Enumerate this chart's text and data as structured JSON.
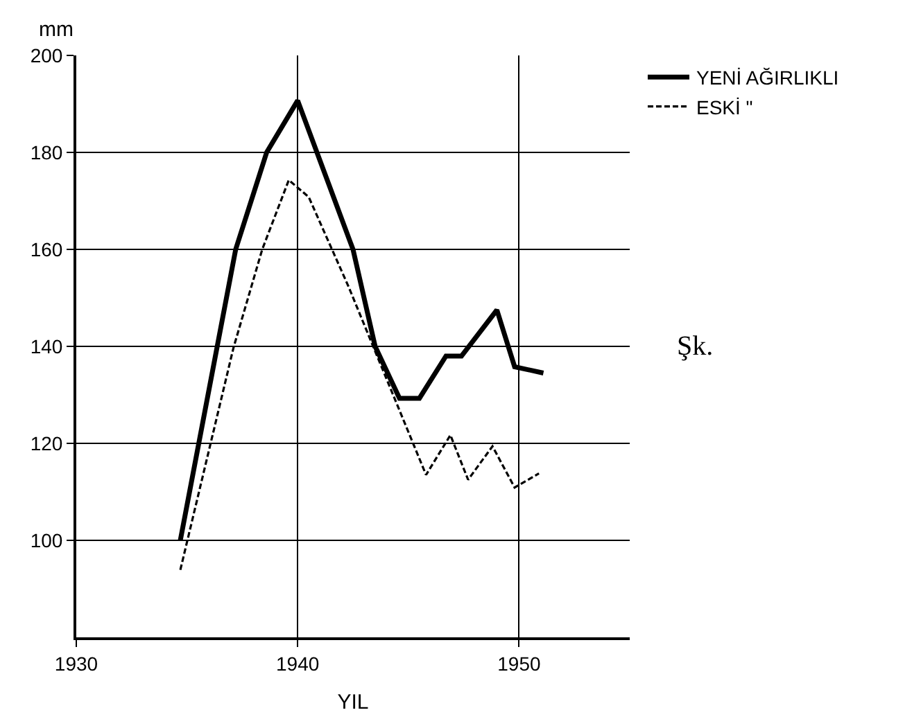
{
  "chart_data": {
    "type": "line",
    "ylabel": "mm",
    "xlabel": "YIL",
    "xlim": [
      1930,
      1955
    ],
    "xticks": [
      1930,
      1940,
      1950
    ],
    "ylim": [
      80,
      200
    ],
    "yticks": [
      100,
      120,
      140,
      160,
      180,
      200
    ],
    "grid": true,
    "legend": "top right",
    "marker": "none",
    "annotations": [
      "Şk."
    ],
    "series": [
      {
        "name": "YENİ AĞIRLIKLI",
        "color": "#000000",
        "line_style": "solid",
        "x": [
          1934.7,
          1937.2,
          1938.6,
          1940.0,
          1942.5,
          1943.5,
          1944.6,
          1945.5,
          1946.7,
          1947.4,
          1949.0,
          1949.8,
          1951.1
        ],
        "values": [
          100,
          160,
          180,
          190.7,
          160,
          140,
          129.3,
          129.3,
          138,
          138,
          147.5,
          135.8,
          134.5
        ]
      },
      {
        "name": "ESKİ \"",
        "color": "#000000",
        "line_style": "dashed",
        "x": [
          1934.7,
          1937.1,
          1938.4,
          1939.6,
          1940.5,
          1942.3,
          1944.7,
          1945.8,
          1946.9,
          1947.7,
          1948.8,
          1949.8,
          1950.9
        ],
        "values": [
          93.9,
          139.7,
          160,
          174.3,
          170.8,
          152.3,
          125.7,
          113.5,
          121.7,
          112.5,
          119.4,
          110.9,
          113.8
        ]
      }
    ]
  }
}
